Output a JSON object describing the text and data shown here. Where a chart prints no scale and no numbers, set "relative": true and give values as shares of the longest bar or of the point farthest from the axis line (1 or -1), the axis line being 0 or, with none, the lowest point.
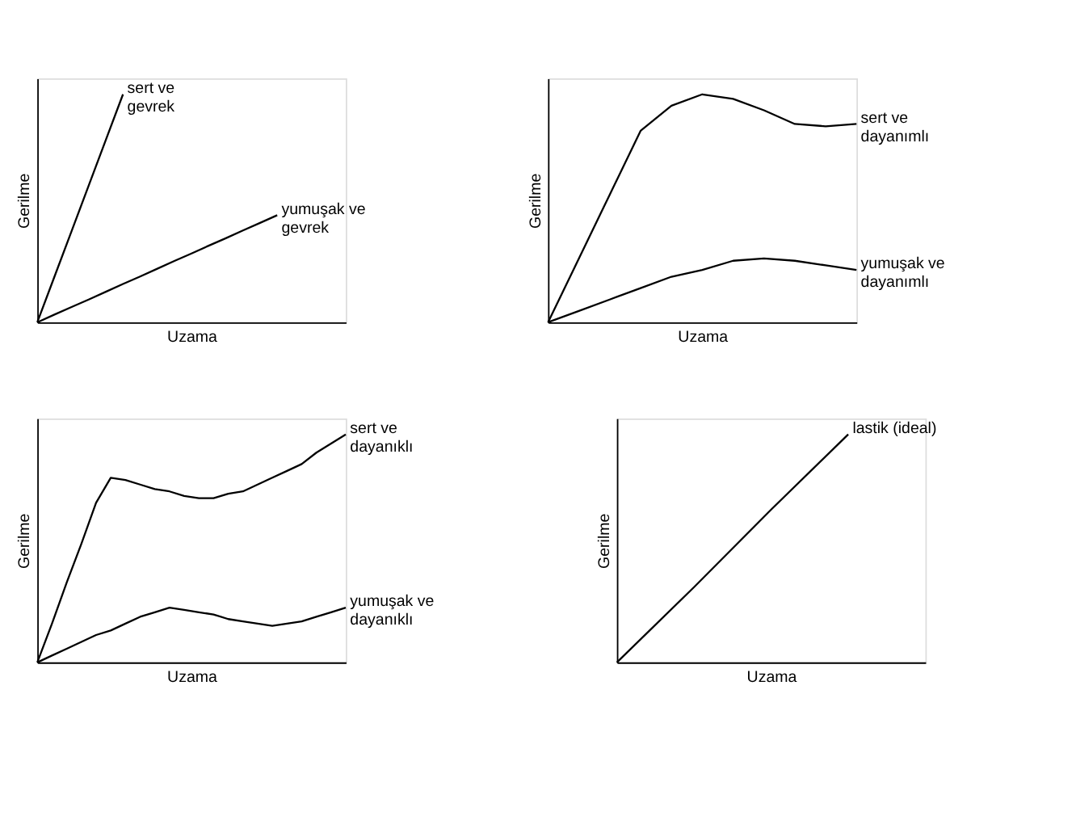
{
  "chart_data": [
    {
      "type": "line",
      "relative": true,
      "xlabel": "Uzama",
      "ylabel": "Gerilme",
      "tick_labels": false,
      "grid": false,
      "marker": "none",
      "line_style": "solid",
      "categories": [
        null,
        null,
        null,
        null,
        null,
        null,
        null,
        null,
        null,
        null,
        null,
        null,
        null,
        null,
        null,
        null,
        null,
        null,
        null
      ],
      "series": [
        {
          "name": "sert ve gevrek",
          "color": "#000000",
          "values": [
            0,
            0.2,
            0.4,
            0.6,
            0.8,
            1.0,
            null,
            null,
            null,
            null,
            null,
            null,
            null,
            null,
            null,
            null,
            null,
            null,
            null
          ]
        },
        {
          "name": "yumuşak ve gevrek",
          "color": "#000000",
          "values": [
            0,
            0.034,
            0.067,
            0.1,
            0.134,
            0.168,
            0.201,
            0.235,
            0.269,
            0.302,
            0.336,
            0.369,
            0.403,
            0.436,
            0.47,
            null,
            null,
            null,
            null
          ]
        }
      ]
    },
    {
      "type": "line",
      "relative": true,
      "xlabel": "Uzama",
      "ylabel": "Gerilme",
      "tick_labels": false,
      "grid": false,
      "marker": "none",
      "line_style": "solid",
      "categories": [
        null,
        null,
        null,
        null,
        null,
        null,
        null,
        null,
        null,
        null,
        null
      ],
      "series": [
        {
          "name": "sert ve dayanımlı",
          "color": "#000000",
          "values": [
            0,
            0.28,
            0.56,
            0.84,
            0.95,
            1.0,
            0.98,
            0.93,
            0.87,
            0.86,
            0.87
          ]
        },
        {
          "name": "yumuşak ve dayanımlı",
          "color": "#000000",
          "values": [
            0,
            0.05,
            0.1,
            0.15,
            0.2,
            0.23,
            0.27,
            0.28,
            0.27,
            0.25,
            0.23
          ]
        }
      ]
    },
    {
      "type": "line",
      "relative": true,
      "xlabel": "Uzama",
      "ylabel": "Gerilme",
      "tick_labels": false,
      "grid": false,
      "marker": "none",
      "line_style": "solid",
      "categories": [
        null,
        null,
        null,
        null,
        null,
        null,
        null,
        null,
        null,
        null,
        null,
        null,
        null,
        null,
        null,
        null,
        null,
        null,
        null,
        null,
        null,
        null
      ],
      "series": [
        {
          "name": "sert ve dayanıklı",
          "color": "#000000",
          "values": [
            0,
            0.17,
            0.35,
            0.52,
            0.7,
            0.81,
            0.8,
            0.78,
            0.76,
            0.75,
            0.73,
            0.72,
            0.72,
            0.74,
            0.75,
            0.78,
            0.81,
            0.84,
            0.87,
            0.92,
            0.96,
            1.0
          ]
        },
        {
          "name": "yumuşak ve dayanıklı",
          "color": "#000000",
          "values": [
            0,
            0.03,
            0.06,
            0.09,
            0.12,
            0.14,
            0.17,
            0.2,
            0.22,
            0.24,
            0.23,
            0.22,
            0.21,
            0.19,
            0.18,
            0.17,
            0.16,
            0.17,
            0.18,
            0.2,
            0.22,
            0.24
          ]
        }
      ]
    },
    {
      "type": "line",
      "relative": true,
      "xlabel": "Uzama",
      "ylabel": "Gerilme",
      "tick_labels": false,
      "grid": false,
      "marker": "none",
      "line_style": "solid",
      "categories": [
        null,
        null,
        null,
        null,
        null
      ],
      "series": [
        {
          "name": "lastik (ideal)",
          "color": "#000000",
          "values": [
            0,
            0.33,
            0.67,
            1.0,
            null
          ]
        }
      ]
    }
  ]
}
